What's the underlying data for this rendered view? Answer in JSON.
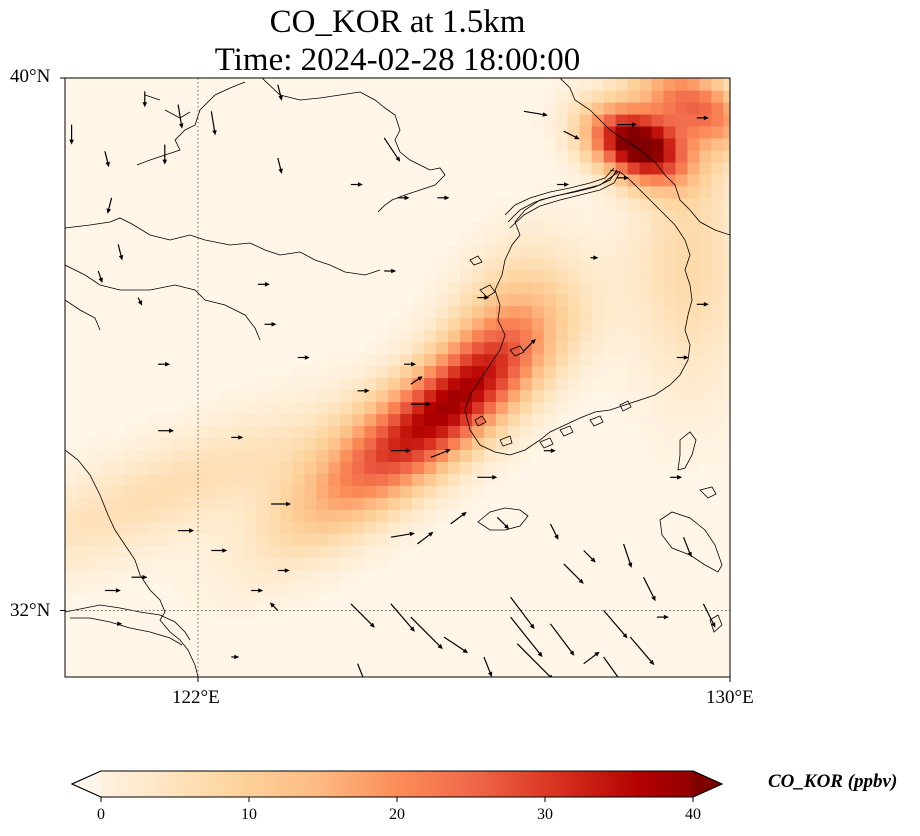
{
  "title": {
    "line1": "CO_KOR at 1.5km",
    "line2": "Time: 2024-02-28 18:00:00"
  },
  "map": {
    "extent": {
      "lon_min": 120,
      "lon_max": 130,
      "lat_min": 31,
      "lat_max": 40
    },
    "lat_ticks": [
      {
        "value": 40,
        "label": "40°N"
      },
      {
        "value": 32,
        "label": "32°N"
      }
    ],
    "lon_ticks": [
      {
        "value": 122,
        "label": "122°E"
      },
      {
        "value": 130,
        "label": "130°E"
      }
    ],
    "gridlines": {
      "style": "dotted",
      "lon": [
        122
      ],
      "lat": [
        32
      ]
    },
    "field": {
      "variable": "CO_KOR",
      "units": "ppbv",
      "background_ppbv": 0.5,
      "plumes": [
        {
          "name": "north-korea-hotspot",
          "lon": 128.6,
          "lat": 39.0,
          "peak": 42,
          "sx": 0.55,
          "sy": 0.35,
          "angle": -25
        },
        {
          "name": "ne-tail",
          "lon": 129.5,
          "lat": 39.6,
          "peak": 22,
          "sx": 0.7,
          "sy": 0.35,
          "angle": -30
        },
        {
          "name": "yellow-sea-band",
          "lon": 125.3,
          "lat": 34.7,
          "peak": 28,
          "sx": 1.6,
          "sy": 0.5,
          "angle": 38
        },
        {
          "name": "west-korea-core",
          "lon": 126.0,
          "lat": 35.3,
          "peak": 8,
          "sx": 0.9,
          "sy": 0.4,
          "angle": 45
        },
        {
          "name": "west-tail",
          "lon": 121.5,
          "lat": 33.8,
          "peak": 7,
          "sx": 2.2,
          "sy": 0.5,
          "angle": 22
        },
        {
          "name": "korea-west-coast",
          "lon": 126.6,
          "lat": 36.4,
          "peak": 10,
          "sx": 0.9,
          "sy": 0.55,
          "angle": 60
        },
        {
          "name": "east-korea",
          "lon": 129.4,
          "lat": 37.2,
          "peak": 8,
          "sx": 0.6,
          "sy": 1.4,
          "angle": 0
        }
      ]
    },
    "wind_vectors": [
      [
        121.7,
        39.6,
        0.1,
        -0.6
      ],
      [
        121.2,
        39.8,
        0,
        -0.4
      ],
      [
        120.1,
        39.3,
        0,
        -0.5
      ],
      [
        120.6,
        38.9,
        0.1,
        -0.4
      ],
      [
        120.7,
        38.2,
        -0.1,
        -0.4
      ],
      [
        121.5,
        39.0,
        0,
        -0.5
      ],
      [
        122.2,
        39.5,
        0.1,
        -0.6
      ],
      [
        123.2,
        39.9,
        0.1,
        -0.4
      ],
      [
        123.2,
        38.8,
        0.1,
        -0.4
      ],
      [
        124.8,
        39.1,
        0.4,
        -0.6
      ],
      [
        126.9,
        39.5,
        0.6,
        -0.1
      ],
      [
        127.5,
        39.2,
        0.4,
        -0.2
      ],
      [
        128.3,
        39.3,
        0.5,
        0
      ],
      [
        129.5,
        39.4,
        0.3,
        0
      ],
      [
        124.3,
        38.4,
        0.3,
        0
      ],
      [
        125.6,
        38.2,
        0.3,
        0
      ],
      [
        125.0,
        38.2,
        0.3,
        0
      ],
      [
        120.8,
        37.5,
        0.1,
        -0.4
      ],
      [
        120.5,
        37.1,
        0.1,
        -0.3
      ],
      [
        121.1,
        36.7,
        0.1,
        -0.2
      ],
      [
        123.0,
        36.3,
        0.3,
        0
      ],
      [
        127.9,
        37.3,
        0.2,
        0
      ],
      [
        124.8,
        37.1,
        0.3,
        0
      ],
      [
        126.2,
        34.0,
        0.5,
        0
      ],
      [
        125.2,
        35.1,
        0.5,
        0
      ],
      [
        124.9,
        34.4,
        0.5,
        0
      ],
      [
        123.1,
        33.6,
        0.5,
        0
      ],
      [
        125.3,
        33.0,
        0.4,
        0.3
      ],
      [
        125.8,
        33.3,
        0.4,
        0.3
      ],
      [
        124.9,
        33.1,
        0.6,
        0.1
      ],
      [
        127.3,
        33.3,
        0.2,
        -0.4
      ],
      [
        127.8,
        32.9,
        0.3,
        -0.3
      ],
      [
        121.4,
        34.7,
        0.4,
        0
      ],
      [
        121.7,
        33.2,
        0.4,
        0
      ],
      [
        122.2,
        32.9,
        0.4,
        0
      ],
      [
        123.2,
        32.6,
        0.3,
        0
      ],
      [
        122.8,
        32.3,
        0.3,
        0
      ],
      [
        120.6,
        32.3,
        0.4,
        0
      ],
      [
        121.0,
        32.5,
        0.4,
        0
      ],
      [
        125.2,
        31.9,
        0.8,
        -0.8
      ],
      [
        125.7,
        31.6,
        0.6,
        -0.4
      ],
      [
        124.9,
        32.1,
        0.6,
        -0.7
      ],
      [
        124.3,
        32.1,
        0.6,
        -0.6
      ],
      [
        126.7,
        32.2,
        0.6,
        -0.8
      ],
      [
        126.7,
        31.9,
        0.8,
        -1
      ],
      [
        126.8,
        31.5,
        0.9,
        -0.9
      ],
      [
        127.3,
        31.8,
        0.6,
        -0.8
      ],
      [
        128.1,
        32.0,
        0.6,
        -0.7
      ],
      [
        128.5,
        31.6,
        0.6,
        -0.7
      ],
      [
        128.4,
        33.0,
        0.2,
        -0.6
      ],
      [
        128.7,
        32.5,
        0.3,
        -0.6
      ],
      [
        128.1,
        31.3,
        0.5,
        -0.7
      ],
      [
        127.5,
        32.7,
        0.5,
        -0.5
      ],
      [
        129.6,
        32.1,
        0.3,
        -0.6
      ],
      [
        125.5,
        34.3,
        0.5,
        0.2
      ],
      [
        123.2,
        32.0,
        -0.2,
        0.2
      ],
      [
        122.5,
        31.3,
        0.2,
        0
      ],
      [
        120.8,
        31.8,
        0.1,
        0
      ],
      [
        125.2,
        35.4,
        0.3,
        0.2
      ],
      [
        126.9,
        35.9,
        0.3,
        0.3
      ],
      [
        127.4,
        38.4,
        0.3,
        0
      ],
      [
        128.3,
        38.5,
        0.3,
        0
      ],
      [
        129.5,
        36.6,
        0.3,
        0
      ],
      [
        126.5,
        33.4,
        0.3,
        -0.3
      ],
      [
        127.8,
        31.2,
        0.4,
        0.3
      ],
      [
        126.2,
        36.7,
        0.3,
        0
      ],
      [
        129.2,
        35.8,
        0.3,
        0
      ],
      [
        122.9,
        36.9,
        0.3,
        0
      ],
      [
        124.4,
        35.3,
        0.3,
        0
      ],
      [
        123.5,
        35.8,
        0.3,
        0
      ],
      [
        122.5,
        34.6,
        0.3,
        0
      ],
      [
        121.4,
        35.7,
        0.3,
        0
      ],
      [
        128.9,
        31.9,
        0.3,
        0
      ],
      [
        129.3,
        33.1,
        0.2,
        -0.5
      ],
      [
        126.3,
        31.3,
        0.2,
        -0.5
      ],
      [
        124.4,
        31.2,
        0.2,
        -0.5
      ],
      [
        125.1,
        35.7,
        0.3,
        0
      ],
      [
        127.2,
        34.4,
        0.3,
        0
      ],
      [
        129.1,
        34.0,
        0.3,
        0
      ]
    ]
  },
  "colorbar": {
    "label": "CO_KOR (ppbv)",
    "min": 0,
    "max": 40,
    "ticks": [
      "0",
      "10",
      "20",
      "30",
      "40"
    ],
    "colormap": [
      "#fff7ec",
      "#fee8c8",
      "#fdd49e",
      "#fdbb84",
      "#fc8d59",
      "#ef6548",
      "#d7301f",
      "#b30000",
      "#7f0000"
    ],
    "extend": "both"
  }
}
